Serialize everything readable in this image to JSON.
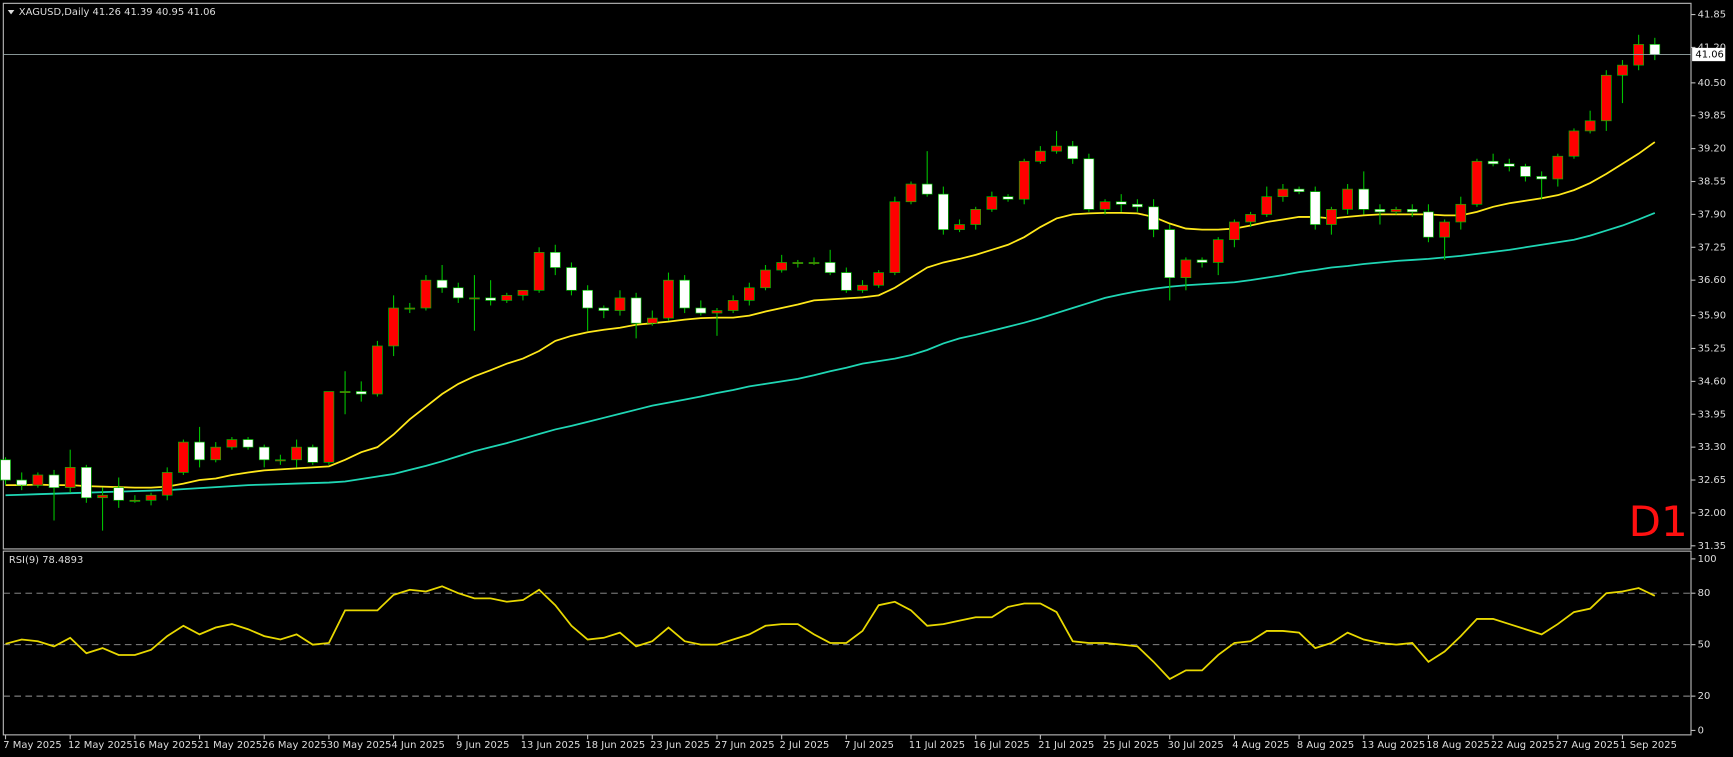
{
  "chart_data": [
    {
      "type": "candlestick",
      "title": "XAGUSD,Daily 41.26 41.39 40.95 41.06",
      "annotation": "D1",
      "categories": [
        "7 May 2025",
        null,
        null,
        null,
        "12 May 2025",
        null,
        null,
        null,
        "16 May 2025",
        null,
        null,
        null,
        "21 May 2025",
        null,
        null,
        null,
        "26 May 2025",
        null,
        null,
        null,
        "30 May 2025",
        null,
        null,
        null,
        "4 Jun 2025",
        null,
        null,
        null,
        "9 Jun 2025",
        null,
        null,
        null,
        "13 Jun 2025",
        null,
        null,
        null,
        "18 Jun 2025",
        null,
        null,
        null,
        "23 Jun 2025",
        null,
        null,
        null,
        "27 Jun 2025",
        null,
        null,
        null,
        "2 Jul 2025",
        null,
        null,
        null,
        "7 Jul 2025",
        null,
        null,
        null,
        "11 Jul 2025",
        null,
        null,
        null,
        "16 Jul 2025",
        null,
        null,
        null,
        "21 Jul 2025",
        null,
        null,
        null,
        "25 Jul 2025",
        null,
        null,
        null,
        "30 Jul 2025",
        null,
        null,
        null,
        "4 Aug 2025",
        null,
        null,
        null,
        "8 Aug 2025",
        null,
        null,
        null,
        "13 Aug 2025",
        null,
        null,
        null,
        "18 Aug 2025",
        null,
        null,
        null,
        "22 Aug 2025",
        null,
        null,
        null,
        "27 Aug 2025",
        null,
        null,
        null,
        "1 Sep 2025",
        null,
        null
      ],
      "ohlc": [
        [
          33.05,
          33.1,
          32.55,
          32.65
        ],
        [
          32.65,
          32.8,
          32.45,
          32.55
        ],
        [
          32.55,
          32.8,
          32.5,
          32.75
        ],
        [
          32.75,
          32.85,
          31.85,
          32.5
        ],
        [
          32.5,
          33.25,
          32.4,
          32.9
        ],
        [
          32.9,
          32.95,
          32.2,
          32.3
        ],
        [
          32.3,
          32.5,
          31.65,
          32.35
        ],
        [
          32.5,
          32.7,
          32.1,
          32.25
        ],
        [
          32.25,
          32.35,
          32.2,
          32.25
        ],
        [
          32.25,
          32.4,
          32.15,
          32.35
        ],
        [
          32.35,
          32.9,
          32.25,
          32.8
        ],
        [
          32.8,
          33.45,
          32.75,
          33.4
        ],
        [
          33.4,
          33.7,
          32.9,
          33.05
        ],
        [
          33.05,
          33.4,
          33.0,
          33.3
        ],
        [
          33.3,
          33.5,
          33.25,
          33.45
        ],
        [
          33.45,
          33.5,
          33.25,
          33.3
        ],
        [
          33.3,
          33.35,
          32.9,
          33.05
        ],
        [
          33.05,
          33.15,
          32.95,
          33.05
        ],
        [
          33.05,
          33.45,
          32.9,
          33.3
        ],
        [
          33.3,
          33.35,
          32.95,
          33.0
        ],
        [
          33.0,
          34.4,
          32.95,
          34.4
        ],
        [
          34.4,
          34.8,
          33.95,
          34.4
        ],
        [
          34.4,
          34.6,
          34.2,
          34.35
        ],
        [
          34.35,
          35.4,
          34.3,
          35.3
        ],
        [
          35.3,
          36.3,
          35.1,
          36.05
        ],
        [
          36.05,
          36.15,
          35.95,
          36.05
        ],
        [
          36.05,
          36.7,
          36.0,
          36.6
        ],
        [
          36.6,
          36.9,
          36.35,
          36.45
        ],
        [
          36.45,
          36.55,
          36.15,
          36.25
        ],
        [
          36.25,
          36.7,
          35.6,
          36.25
        ],
        [
          36.25,
          36.6,
          36.1,
          36.2
        ],
        [
          36.2,
          36.35,
          36.15,
          36.3
        ],
        [
          36.3,
          36.4,
          36.2,
          36.4
        ],
        [
          36.4,
          37.25,
          36.35,
          37.15
        ],
        [
          37.15,
          37.3,
          36.7,
          36.85
        ],
        [
          36.85,
          36.95,
          36.3,
          36.4
        ],
        [
          36.4,
          36.5,
          35.6,
          36.05
        ],
        [
          36.05,
          36.1,
          35.85,
          36.0
        ],
        [
          36.0,
          36.4,
          35.9,
          36.25
        ],
        [
          36.25,
          36.35,
          35.45,
          35.75
        ],
        [
          35.75,
          36.0,
          35.7,
          35.85
        ],
        [
          35.85,
          36.75,
          35.8,
          36.6
        ],
        [
          36.6,
          36.7,
          35.95,
          36.05
        ],
        [
          36.05,
          36.2,
          35.9,
          35.95
        ],
        [
          35.95,
          36.05,
          35.5,
          36.0
        ],
        [
          36.0,
          36.3,
          35.95,
          36.2
        ],
        [
          36.2,
          36.55,
          36.1,
          36.45
        ],
        [
          36.45,
          36.9,
          36.4,
          36.8
        ],
        [
          36.8,
          37.1,
          36.75,
          36.95
        ],
        [
          36.95,
          37.0,
          36.85,
          36.95
        ],
        [
          36.95,
          37.05,
          36.9,
          36.95
        ],
        [
          36.95,
          37.2,
          36.7,
          36.75
        ],
        [
          36.75,
          36.85,
          36.35,
          36.4
        ],
        [
          36.4,
          36.6,
          36.35,
          36.5
        ],
        [
          36.5,
          36.8,
          36.45,
          36.75
        ],
        [
          36.75,
          38.25,
          36.7,
          38.15
        ],
        [
          38.15,
          38.55,
          38.1,
          38.5
        ],
        [
          38.5,
          39.15,
          38.25,
          38.3
        ],
        [
          38.3,
          38.45,
          37.5,
          37.6
        ],
        [
          37.6,
          37.8,
          37.55,
          37.7
        ],
        [
          37.7,
          38.05,
          37.6,
          38.0
        ],
        [
          38.0,
          38.35,
          37.95,
          38.25
        ],
        [
          38.25,
          38.3,
          38.15,
          38.2
        ],
        [
          38.2,
          39.0,
          38.1,
          38.95
        ],
        [
          38.95,
          39.25,
          38.9,
          39.15
        ],
        [
          39.15,
          39.55,
          39.1,
          39.25
        ],
        [
          39.25,
          39.35,
          38.9,
          39.0
        ],
        [
          39.0,
          39.1,
          37.95,
          38.0
        ],
        [
          38.0,
          38.2,
          37.9,
          38.15
        ],
        [
          38.15,
          38.3,
          37.95,
          38.1
        ],
        [
          38.1,
          38.2,
          37.95,
          38.05
        ],
        [
          38.05,
          38.2,
          37.45,
          37.6
        ],
        [
          37.6,
          37.7,
          36.2,
          36.65
        ],
        [
          36.65,
          37.05,
          36.4,
          37.0
        ],
        [
          37.0,
          37.05,
          36.85,
          36.95
        ],
        [
          36.95,
          37.45,
          36.7,
          37.4
        ],
        [
          37.4,
          37.8,
          37.25,
          37.75
        ],
        [
          37.75,
          37.95,
          37.65,
          37.9
        ],
        [
          37.9,
          38.45,
          37.85,
          38.25
        ],
        [
          38.25,
          38.5,
          38.15,
          38.4
        ],
        [
          38.4,
          38.45,
          38.3,
          38.35
        ],
        [
          38.35,
          38.45,
          37.6,
          37.7
        ],
        [
          37.7,
          38.05,
          37.5,
          38.0
        ],
        [
          38.0,
          38.5,
          37.9,
          38.4
        ],
        [
          38.4,
          38.75,
          37.9,
          38.0
        ],
        [
          38.0,
          38.1,
          37.7,
          37.95
        ],
        [
          37.95,
          38.05,
          37.9,
          38.0
        ],
        [
          38.0,
          38.1,
          37.85,
          37.95
        ],
        [
          37.95,
          38.1,
          37.35,
          37.45
        ],
        [
          37.45,
          37.8,
          37.0,
          37.75
        ],
        [
          37.75,
          38.25,
          37.6,
          38.1
        ],
        [
          38.1,
          39.0,
          38.05,
          38.95
        ],
        [
          38.95,
          39.1,
          38.85,
          38.9
        ],
        [
          38.9,
          39.0,
          38.75,
          38.85
        ],
        [
          38.85,
          38.9,
          38.55,
          38.65
        ],
        [
          38.65,
          38.75,
          38.2,
          38.6
        ],
        [
          38.6,
          39.1,
          38.45,
          39.05
        ],
        [
          39.05,
          39.6,
          39.0,
          39.55
        ],
        [
          39.55,
          39.95,
          39.5,
          39.75
        ],
        [
          39.75,
          40.75,
          39.55,
          40.65
        ],
        [
          40.65,
          40.95,
          40.1,
          40.85
        ],
        [
          40.85,
          41.45,
          40.75,
          41.26
        ],
        [
          41.26,
          41.39,
          40.95,
          41.06
        ]
      ],
      "up_color": "#ff0000",
      "down_color": "#ffffff",
      "wick_color": "#00c000",
      "lines": [
        {
          "color": "#ffe81a",
          "values": [
            32.55,
            32.55,
            32.56,
            32.55,
            32.55,
            32.53,
            32.52,
            32.51,
            32.5,
            32.5,
            32.52,
            32.58,
            32.65,
            32.68,
            32.75,
            32.8,
            32.84,
            32.86,
            32.88,
            32.9,
            32.92,
            33.05,
            33.2,
            33.3,
            33.55,
            33.85,
            34.1,
            34.35,
            34.55,
            34.7,
            34.82,
            34.95,
            35.05,
            35.2,
            35.4,
            35.5,
            35.57,
            35.62,
            35.66,
            35.72,
            35.75,
            35.78,
            35.82,
            35.85,
            35.86,
            35.86,
            35.9,
            35.98,
            36.05,
            36.12,
            36.2,
            36.22,
            36.24,
            36.26,
            36.3,
            36.45,
            36.65,
            36.85,
            36.95,
            37.02,
            37.1,
            37.2,
            37.3,
            37.45,
            37.65,
            37.82,
            37.9,
            37.92,
            37.93,
            37.93,
            37.92,
            37.85,
            37.72,
            37.62,
            37.6,
            37.6,
            37.62,
            37.68,
            37.75,
            37.8,
            37.85,
            37.85,
            37.82,
            37.85,
            37.88,
            37.9,
            37.9,
            37.9,
            37.9,
            37.88,
            37.88,
            37.95,
            38.05,
            38.12,
            38.17,
            38.22,
            38.28,
            38.38,
            38.52,
            38.7,
            38.9,
            39.1,
            39.33
          ]
        },
        {
          "color": "#1fd6b4",
          "values": [
            32.35,
            32.36,
            32.37,
            32.38,
            32.39,
            32.4,
            32.41,
            32.42,
            32.43,
            32.44,
            32.45,
            32.47,
            32.49,
            32.51,
            32.53,
            32.55,
            32.56,
            32.57,
            32.58,
            32.59,
            32.6,
            32.62,
            32.67,
            32.72,
            32.77,
            32.85,
            32.93,
            33.02,
            33.12,
            33.22,
            33.3,
            33.38,
            33.47,
            33.56,
            33.65,
            33.72,
            33.8,
            33.88,
            33.96,
            34.04,
            34.12,
            34.18,
            34.24,
            34.3,
            34.37,
            34.43,
            34.5,
            34.55,
            34.6,
            34.65,
            34.72,
            34.8,
            34.87,
            34.95,
            35.0,
            35.05,
            35.12,
            35.22,
            35.35,
            35.45,
            35.52,
            35.6,
            35.68,
            35.76,
            35.85,
            35.95,
            36.05,
            36.15,
            36.25,
            36.32,
            36.38,
            36.43,
            36.47,
            36.5,
            36.52,
            36.54,
            36.56,
            36.6,
            36.65,
            36.7,
            36.76,
            36.8,
            36.85,
            36.88,
            36.92,
            36.95,
            36.98,
            37.0,
            37.02,
            37.05,
            37.08,
            37.12,
            37.16,
            37.2,
            37.25,
            37.3,
            37.35,
            37.4,
            37.48,
            37.58,
            37.68,
            37.8,
            37.93
          ]
        }
      ],
      "last_price": 41.06,
      "ylim": [
        31.31,
        42.05
      ],
      "yticks": [
        31.35,
        {
          "value": 32,
          "label": "32.00"
        },
        32.65,
        {
          "value": 33.3,
          "label": "33.30"
        },
        33.95,
        {
          "value": 34.6,
          "label": "34.60"
        },
        35.25,
        {
          "value": 35.9,
          "label": "35.90"
        },
        {
          "value": 36.6,
          "label": "36.60"
        },
        37.25,
        {
          "value": 37.9,
          "label": "37.90"
        },
        38.55,
        {
          "value": 39.2,
          "label": "39.20"
        },
        39.85,
        {
          "value": 40.5,
          "label": "40.50"
        },
        {
          "value": 41.2,
          "label": "41.20"
        },
        41.85
      ]
    },
    {
      "type": "line",
      "title": "RSI(9) 78.4893",
      "color": "#e8d800",
      "values": [
        50.5,
        53,
        52,
        49,
        54,
        45,
        48,
        44,
        44,
        47,
        55,
        61,
        56,
        60,
        62,
        59,
        55,
        53,
        56,
        50,
        51,
        70,
        70,
        70,
        79,
        82,
        81,
        84,
        80,
        77,
        77,
        75,
        76,
        82,
        73,
        61,
        53,
        54,
        57,
        49,
        52,
        60,
        52,
        50,
        50,
        53,
        56,
        61,
        62,
        62,
        56,
        51,
        51,
        58,
        73,
        75,
        70,
        61,
        62,
        64,
        66,
        66,
        72,
        74,
        74,
        69,
        52,
        51,
        51,
        50,
        49,
        40,
        30,
        35,
        35,
        44,
        51,
        52,
        58,
        58,
        57,
        48,
        51,
        57,
        53,
        51,
        50,
        51,
        40,
        46,
        55,
        65,
        65,
        62,
        59,
        56,
        62,
        69,
        71,
        80,
        81,
        83,
        78.49
      ],
      "ylim": [
        0,
        100
      ],
      "yticks": [
        0,
        20,
        50,
        80,
        100
      ],
      "levels": [
        20,
        50,
        80
      ]
    }
  ]
}
